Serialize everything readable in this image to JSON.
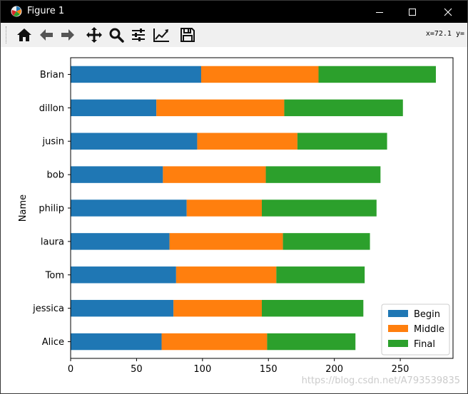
{
  "window": {
    "title": "Figure 1",
    "icon": "matplotlib-logo-icon",
    "controls": [
      "minimize-icon",
      "maximize-icon",
      "close-icon"
    ]
  },
  "toolbar": {
    "buttons": [
      {
        "name": "home-button",
        "icon": "home-icon"
      },
      {
        "name": "back-button",
        "icon": "arrow-left-icon"
      },
      {
        "name": "forward-button",
        "icon": "arrow-right-icon"
      },
      {
        "name": "pan-button",
        "icon": "move-icon"
      },
      {
        "name": "zoom-button",
        "icon": "magnifier-icon"
      },
      {
        "name": "configure-subplots-button",
        "icon": "sliders-icon"
      },
      {
        "name": "edit-axis-button",
        "icon": "line-chart-icon"
      },
      {
        "name": "save-button",
        "icon": "floppy-disk-icon"
      }
    ],
    "coords": "x=72.1 y="
  },
  "watermark": "https://blog.csdn.net/A793539835",
  "chart_data": {
    "type": "bar",
    "orientation": "horizontal",
    "stacked": true,
    "categories": [
      "Alice",
      "jessica",
      "Tom",
      "laura",
      "philip",
      "bob",
      "jusin",
      "dillon",
      "Brian"
    ],
    "series": [
      {
        "name": "Begin",
        "color": "#1f77b4",
        "values": [
          69,
          78,
          80,
          75,
          88,
          70,
          96,
          65,
          99
        ]
      },
      {
        "name": "Middle",
        "color": "#ff7f0e",
        "values": [
          80,
          67,
          76,
          86,
          57,
          78,
          76,
          97,
          89
        ]
      },
      {
        "name": "Final",
        "color": "#2ca02c",
        "values": [
          67,
          77,
          67,
          66,
          87,
          87,
          68,
          90,
          89
        ]
      }
    ],
    "xlabel": "",
    "ylabel": "Name",
    "xlim": [
      0,
      290
    ],
    "xticks": [
      0,
      50,
      100,
      150,
      200,
      250
    ],
    "legend": "lower-right",
    "grid": false
  }
}
